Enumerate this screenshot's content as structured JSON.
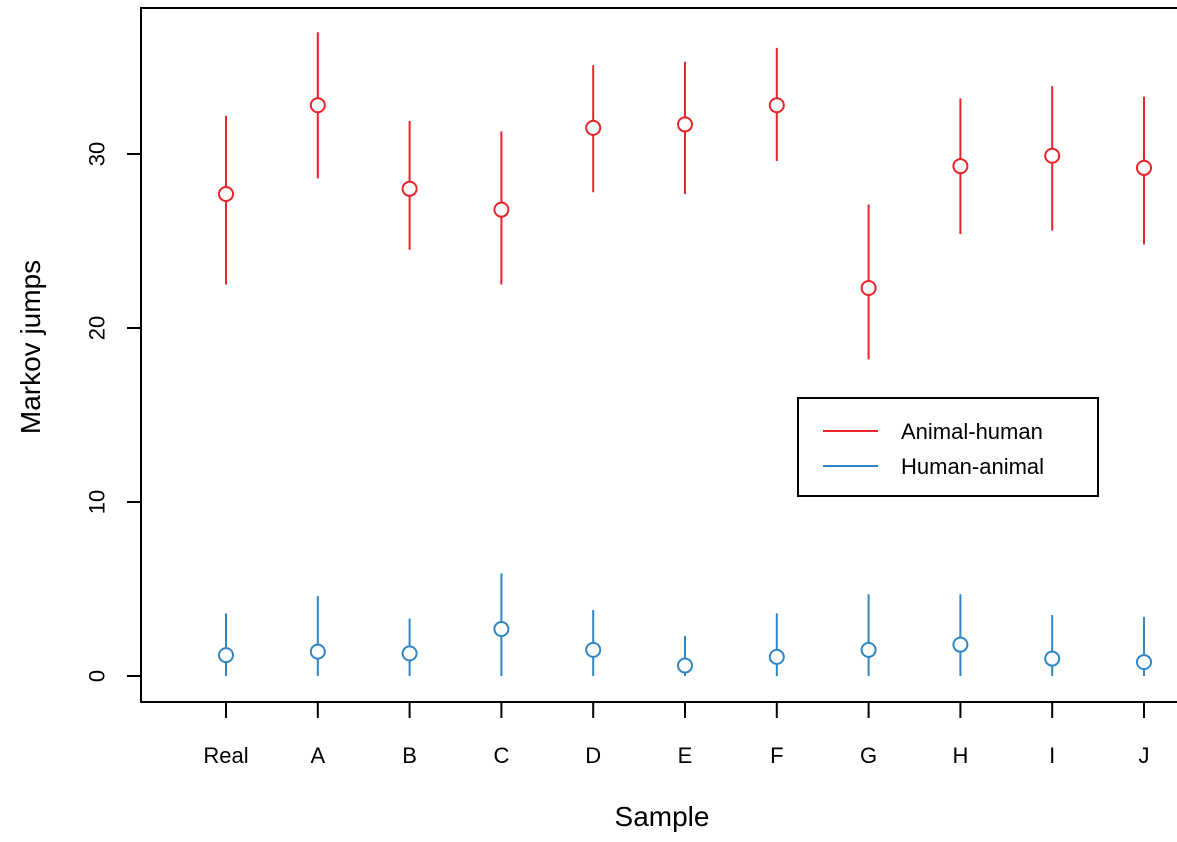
{
  "chart_data": {
    "type": "scatter",
    "title": "",
    "xlabel": "Sample",
    "ylabel": "Markov jumps",
    "categories": [
      "Real",
      "A",
      "B",
      "C",
      "D",
      "E",
      "F",
      "G",
      "H",
      "I",
      "J"
    ],
    "ylim": [
      0,
      38
    ],
    "yticks": [
      0,
      10,
      20,
      30
    ],
    "grid": false,
    "legend_position": "right",
    "series": [
      {
        "name": "Animal-human",
        "color": "#e8232a",
        "values": [
          27.7,
          32.8,
          28.0,
          26.8,
          31.5,
          31.7,
          32.8,
          22.3,
          29.3,
          29.9,
          29.2
        ],
        "lower": [
          22.5,
          28.6,
          24.5,
          22.5,
          27.8,
          27.7,
          29.6,
          18.2,
          25.4,
          25.6,
          24.8
        ],
        "upper": [
          32.2,
          37.0,
          31.9,
          31.3,
          35.1,
          35.3,
          36.1,
          27.1,
          33.2,
          33.9,
          33.3
        ]
      },
      {
        "name": "Human-animal",
        "color": "#2f86c5",
        "values": [
          1.2,
          1.4,
          1.3,
          2.7,
          1.5,
          0.6,
          1.1,
          1.5,
          1.8,
          1.0,
          0.8
        ],
        "lower": [
          0.0,
          0.0,
          0.0,
          0.0,
          0.0,
          0.0,
          0.0,
          0.0,
          0.0,
          0.0,
          0.0
        ],
        "upper": [
          3.6,
          4.6,
          3.3,
          5.9,
          3.8,
          2.3,
          3.6,
          4.7,
          4.7,
          3.5,
          3.4
        ]
      }
    ]
  }
}
